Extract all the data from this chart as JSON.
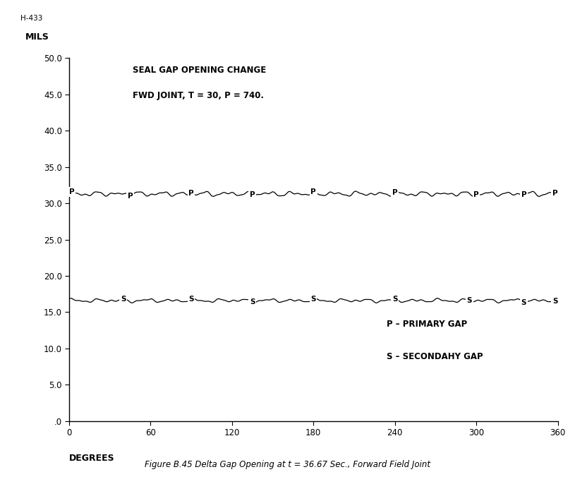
{
  "title_fig": "Figure B.45 Delta Gap Opening at t = 36.67 Sec., Forward Field Joint",
  "header_label": "H-433",
  "ylabel": "MILS",
  "xlabel": "DEGREES",
  "annotation1": "SEAL GAP OPENING CHANGE",
  "annotation2": "FWD JOINT, T = 30, P = 740.",
  "legend1": "P – PRIMARY GAP",
  "legend2": "S – SECONDAHY GAP",
  "xlim": [
    0,
    360
  ],
  "ylim": [
    0.0,
    50.0
  ],
  "yticks": [
    0.0,
    5.0,
    10.0,
    15.0,
    20.0,
    25.0,
    30.0,
    35.0,
    40.0,
    45.0,
    50.0
  ],
  "xticks": [
    0,
    60,
    120,
    180,
    240,
    300,
    360
  ],
  "primary_base": 31.3,
  "secondary_base": 16.6,
  "background_color": "#ffffff",
  "line_color": "#000000",
  "text_color": "#000000"
}
